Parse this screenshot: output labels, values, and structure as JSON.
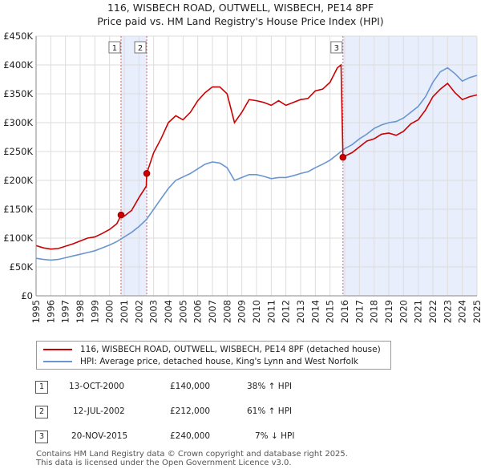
{
  "title": "116, WISBECH ROAD, OUTWELL, WISBECH, PE14 8PF",
  "subtitle": "Price paid vs. HM Land Registry's House Price Index (HPI)",
  "colors": {
    "property": "#cc0000",
    "hpi": "#6a96d0",
    "shade": "#e8eefb",
    "grid": "#dddddd"
  },
  "chart_data": {
    "type": "line",
    "xlim": [
      1995,
      2025
    ],
    "ylim": [
      0,
      450000
    ],
    "y_ticks": [
      0,
      50000,
      100000,
      150000,
      200000,
      250000,
      300000,
      350000,
      400000,
      450000
    ],
    "y_tick_labels": [
      "£0",
      "£50K",
      "£100K",
      "£150K",
      "£200K",
      "£250K",
      "£300K",
      "£350K",
      "£400K",
      "£450K"
    ],
    "x_ticks": [
      1995,
      1996,
      1997,
      1998,
      1999,
      2000,
      2001,
      2002,
      2003,
      2004,
      2005,
      2006,
      2007,
      2008,
      2009,
      2010,
      2011,
      2012,
      2013,
      2014,
      2015,
      2016,
      2017,
      2018,
      2019,
      2020,
      2021,
      2022,
      2023,
      2024,
      2025
    ],
    "x_tick_labels": [
      "1995",
      "1996",
      "1997",
      "1998",
      "1999",
      "2000",
      "2001",
      "2002",
      "2003",
      "2004",
      "2005",
      "2006",
      "2007",
      "2008",
      "2009",
      "2010",
      "2011",
      "2012",
      "2013",
      "2014",
      "2015",
      "2016",
      "2017",
      "2018",
      "2019",
      "2020",
      "2021",
      "2022",
      "2023",
      "2024",
      "2025"
    ],
    "shaded_ranges": [
      [
        2000.78,
        2002.53
      ],
      [
        2015.88,
        2025.0
      ]
    ],
    "series": [
      {
        "name": "116, WISBECH ROAD, OUTWELL, WISBECH, PE14 8PF (detached house)",
        "x": [
          1995.0,
          1995.5,
          1996.0,
          1996.5,
          1997.0,
          1997.5,
          1998.0,
          1998.5,
          1999.0,
          1999.5,
          2000.0,
          2000.5,
          2000.78,
          2001.0,
          2001.5,
          2002.0,
          2002.5,
          2002.53,
          2003.0,
          2003.5,
          2004.0,
          2004.5,
          2005.0,
          2005.5,
          2006.0,
          2006.5,
          2007.0,
          2007.5,
          2008.0,
          2008.5,
          2009.0,
          2009.5,
          2010.0,
          2010.5,
          2011.0,
          2011.5,
          2012.0,
          2012.5,
          2013.0,
          2013.5,
          2014.0,
          2014.5,
          2015.0,
          2015.3,
          2015.5,
          2015.75,
          2015.88,
          2016.0,
          2016.5,
          2017.0,
          2017.5,
          2018.0,
          2018.5,
          2019.0,
          2019.5,
          2020.0,
          2020.5,
          2021.0,
          2021.5,
          2022.0,
          2022.5,
          2023.0,
          2023.5,
          2024.0,
          2024.5,
          2025.0
        ],
        "values": [
          87000,
          83000,
          81000,
          82000,
          86000,
          90000,
          95000,
          100000,
          102000,
          108000,
          115000,
          125000,
          140000,
          138000,
          148000,
          170000,
          190000,
          212000,
          248000,
          272000,
          300000,
          312000,
          305000,
          318000,
          338000,
          352000,
          362000,
          362000,
          350000,
          300000,
          318000,
          340000,
          338000,
          335000,
          330000,
          338000,
          330000,
          335000,
          340000,
          342000,
          355000,
          358000,
          370000,
          385000,
          395000,
          400000,
          240000,
          242000,
          248000,
          258000,
          268000,
          272000,
          280000,
          282000,
          278000,
          285000,
          298000,
          305000,
          322000,
          345000,
          358000,
          368000,
          352000,
          340000,
          345000,
          348000
        ]
      },
      {
        "name": "HPI: Average price, detached house, King's Lynn and West Norfolk",
        "x": [
          1995.0,
          1995.5,
          1996.0,
          1996.5,
          1997.0,
          1997.5,
          1998.0,
          1998.5,
          1999.0,
          1999.5,
          2000.0,
          2000.5,
          2001.0,
          2001.5,
          2002.0,
          2002.5,
          2003.0,
          2003.5,
          2004.0,
          2004.5,
          2005.0,
          2005.5,
          2006.0,
          2006.5,
          2007.0,
          2007.5,
          2008.0,
          2008.5,
          2009.0,
          2009.5,
          2010.0,
          2010.5,
          2011.0,
          2011.5,
          2012.0,
          2012.5,
          2013.0,
          2013.5,
          2014.0,
          2014.5,
          2015.0,
          2015.5,
          2016.0,
          2016.5,
          2017.0,
          2017.5,
          2018.0,
          2018.5,
          2019.0,
          2019.5,
          2020.0,
          2020.5,
          2021.0,
          2021.5,
          2022.0,
          2022.5,
          2023.0,
          2023.5,
          2024.0,
          2024.5,
          2025.0
        ],
        "values": [
          65000,
          63000,
          62000,
          63000,
          66000,
          69000,
          72000,
          75000,
          78000,
          83000,
          88000,
          94000,
          102000,
          110000,
          120000,
          132000,
          150000,
          168000,
          186000,
          200000,
          206000,
          212000,
          220000,
          228000,
          232000,
          230000,
          222000,
          200000,
          205000,
          210000,
          210000,
          207000,
          203000,
          205000,
          205000,
          208000,
          212000,
          215000,
          222000,
          228000,
          235000,
          245000,
          255000,
          262000,
          272000,
          280000,
          290000,
          296000,
          300000,
          302000,
          308000,
          318000,
          328000,
          345000,
          370000,
          388000,
          395000,
          385000,
          372000,
          378000,
          382000
        ]
      }
    ],
    "sales": [
      {
        "label": "1",
        "x": 2000.78,
        "y": 140000
      },
      {
        "label": "2",
        "x": 2002.53,
        "y": 212000
      },
      {
        "label": "3",
        "x": 2015.88,
        "y": 240000
      }
    ]
  },
  "legend": {
    "property": "116, WISBECH ROAD, OUTWELL, WISBECH, PE14 8PF (detached house)",
    "hpi": "HPI: Average price, detached house, King's Lynn and West Norfolk"
  },
  "sales_table": [
    {
      "num": "1",
      "date": "13-OCT-2000",
      "price": "£140,000",
      "hpi": "38% ↑ HPI"
    },
    {
      "num": "2",
      "date": "12-JUL-2002",
      "price": "£212,000",
      "hpi": "61% ↑ HPI"
    },
    {
      "num": "3",
      "date": "20-NOV-2015",
      "price": "£240,000",
      "hpi": "7% ↓ HPI"
    }
  ],
  "footer": {
    "line1": "Contains HM Land Registry data © Crown copyright and database right 2025.",
    "line2": "This data is licensed under the Open Government Licence v3.0."
  }
}
